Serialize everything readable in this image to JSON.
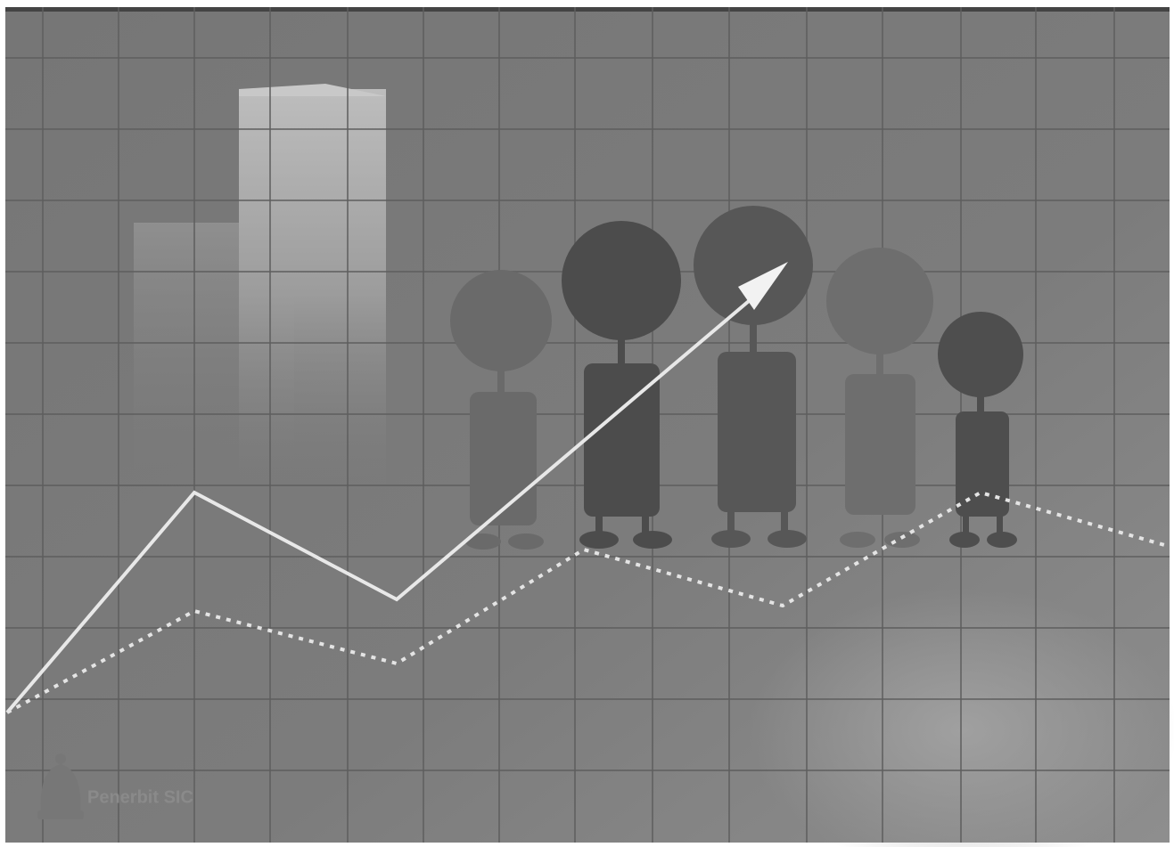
{
  "watermark": {
    "text": "Penerbit SIC"
  }
}
